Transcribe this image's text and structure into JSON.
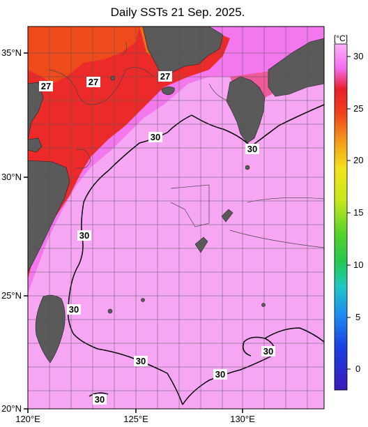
{
  "title": "Daily SSTs 21 Sep. 2025.",
  "unit_label": "[°C]",
  "colorbar_ticks": [
    "30",
    "25",
    "20",
    "15",
    "10",
    "5",
    "0"
  ],
  "lat_labels": [
    "35°N",
    "30°N",
    "25°N",
    "20°N"
  ],
  "lon_labels": [
    "120°E",
    "125°E",
    "130°E"
  ],
  "contour_labels": [
    "27",
    "27",
    "27",
    "30",
    "30",
    "30",
    "30",
    "30",
    "30",
    "30",
    "30"
  ],
  "colors": {
    "warm_red": "#e81f1f",
    "orange_red": "#ef4a1c",
    "magenta_pink": "#f37ff2",
    "pink": "#f7a6f4",
    "land": "#5a5a5a"
  }
}
